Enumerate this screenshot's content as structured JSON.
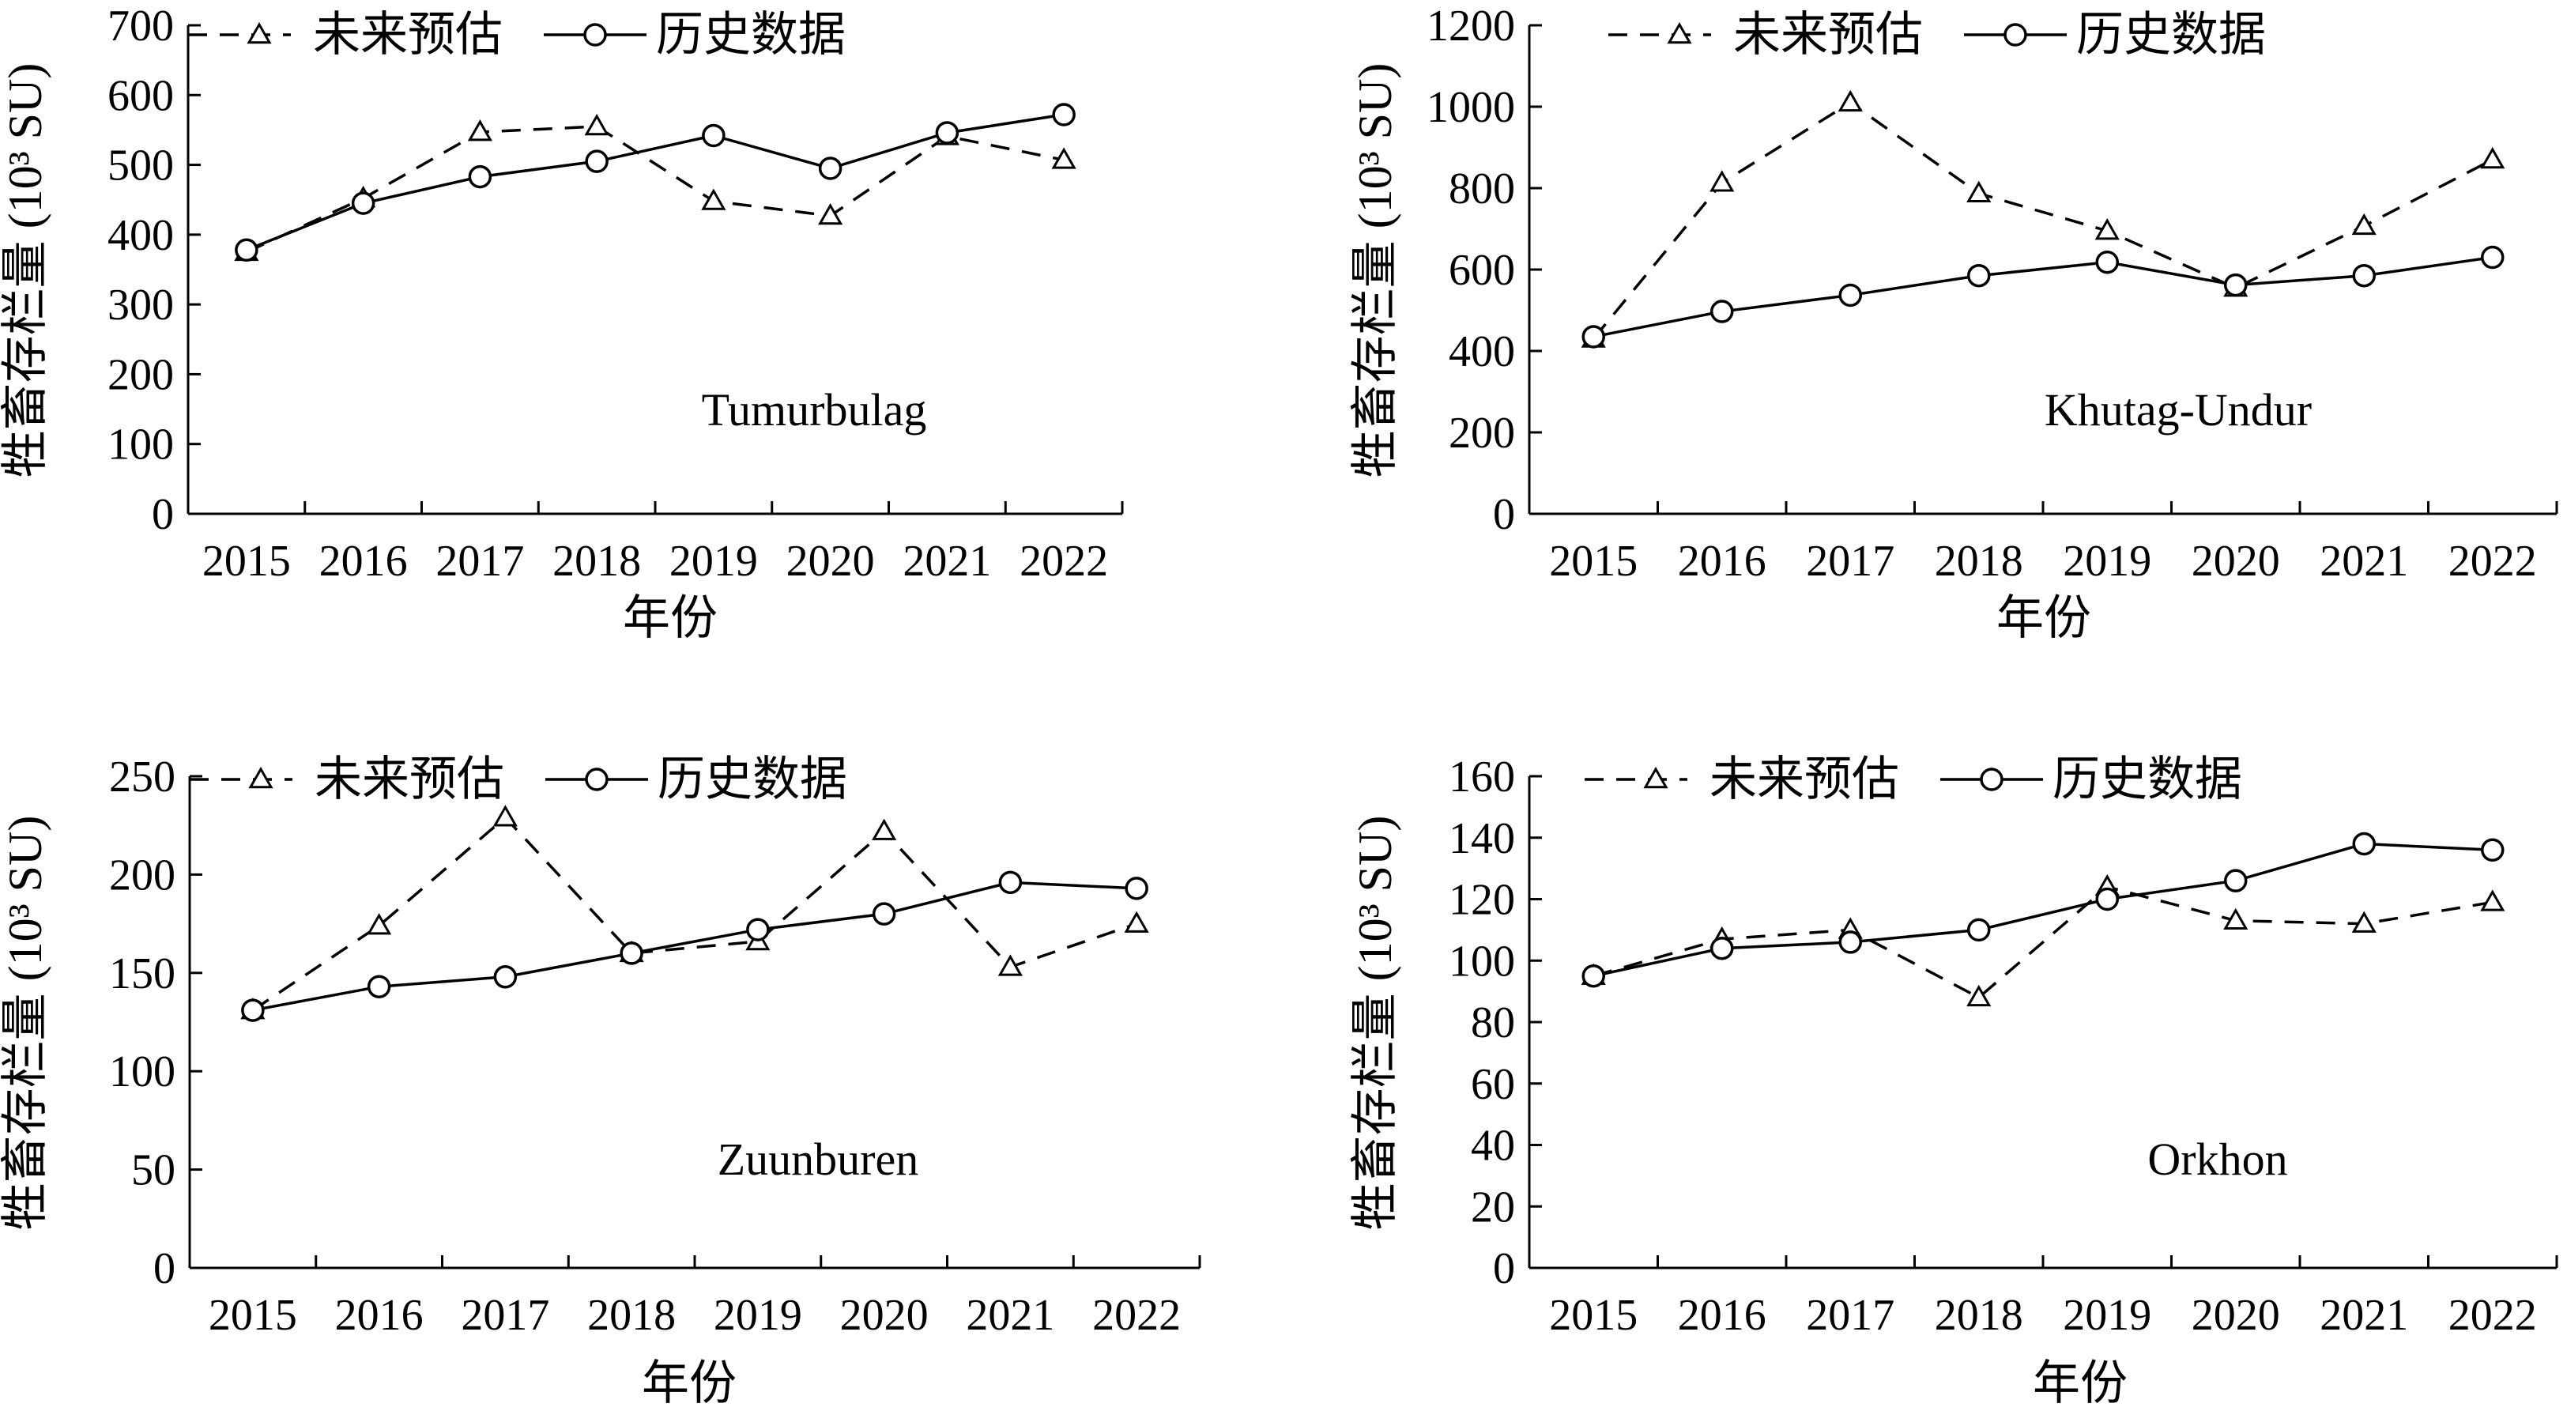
{
  "chart_data": [
    {
      "type": "line",
      "annotation": "Tumurbulag",
      "xlabel": "年份",
      "ylabel": "牲畜存栏量 (10³ SU)",
      "categories": [
        "2015",
        "2016",
        "2017",
        "2018",
        "2019",
        "2020",
        "2021",
        "2022"
      ],
      "ylim": [
        0,
        700
      ],
      "yticks": [
        0,
        100,
        200,
        300,
        400,
        500,
        600,
        700
      ],
      "legend": {
        "placement": "top-left"
      },
      "series": [
        {
          "name": "未来预估",
          "style": "dashed",
          "marker": "triangle",
          "values": [
            375,
            452,
            547,
            555,
            448,
            427,
            541,
            507
          ]
        },
        {
          "name": "历史数据",
          "style": "solid",
          "marker": "circle",
          "values": [
            378,
            445,
            483,
            505,
            542,
            495,
            546,
            572
          ]
        }
      ]
    },
    {
      "type": "line",
      "annotation": "Khutag-Undur",
      "xlabel": "年份",
      "ylabel": "牲畜存栏量 (10³ SU)",
      "categories": [
        "2015",
        "2016",
        "2017",
        "2018",
        "2019",
        "2020",
        "2021",
        "2022"
      ],
      "ylim": [
        0,
        1200
      ],
      "yticks": [
        0,
        200,
        400,
        600,
        800,
        1000,
        1200
      ],
      "legend": {
        "placement": "top-left"
      },
      "series": [
        {
          "name": "未来预估",
          "style": "dashed",
          "marker": "triangle",
          "values": [
            430,
            813,
            1010,
            787,
            695,
            555,
            707,
            870
          ]
        },
        {
          "name": "历史数据",
          "style": "solid",
          "marker": "circle",
          "values": [
            435,
            497,
            537,
            585,
            618,
            562,
            585,
            630
          ]
        }
      ]
    },
    {
      "type": "line",
      "annotation": "Zuunburen",
      "xlabel": "年份",
      "ylabel": "牲畜存栏量 (10³ SU)",
      "categories": [
        "2015",
        "2016",
        "2017",
        "2018",
        "2019",
        "2020",
        "2021",
        "2022"
      ],
      "ylim": [
        0,
        250
      ],
      "yticks": [
        0,
        50,
        100,
        150,
        200,
        250
      ],
      "legend": {
        "placement": "top-left"
      },
      "series": [
        {
          "name": "未来预估",
          "style": "dashed",
          "marker": "triangle",
          "values": [
            131,
            174,
            229,
            160,
            166,
            222,
            153,
            175
          ]
        },
        {
          "name": "历史数据",
          "style": "solid",
          "marker": "circle",
          "values": [
            131,
            143,
            148,
            160,
            172,
            180,
            196,
            193
          ]
        }
      ]
    },
    {
      "type": "line",
      "annotation": "Orkhon",
      "xlabel": "年份",
      "ylabel": "牲畜存栏量 (10³ SU)",
      "categories": [
        "2015",
        "2016",
        "2017",
        "2018",
        "2019",
        "2020",
        "2021",
        "2022"
      ],
      "ylim": [
        0,
        160
      ],
      "yticks": [
        0,
        20,
        40,
        60,
        80,
        100,
        120,
        140,
        160
      ],
      "legend": {
        "placement": "top-left"
      },
      "series": [
        {
          "name": "未来预估",
          "style": "dashed",
          "marker": "triangle",
          "values": [
            95,
            107,
            110,
            88,
            124,
            113,
            112,
            119
          ]
        },
        {
          "name": "历史数据",
          "style": "solid",
          "marker": "circle",
          "values": [
            95,
            104,
            106,
            110,
            120,
            126,
            138,
            136
          ]
        }
      ]
    }
  ]
}
